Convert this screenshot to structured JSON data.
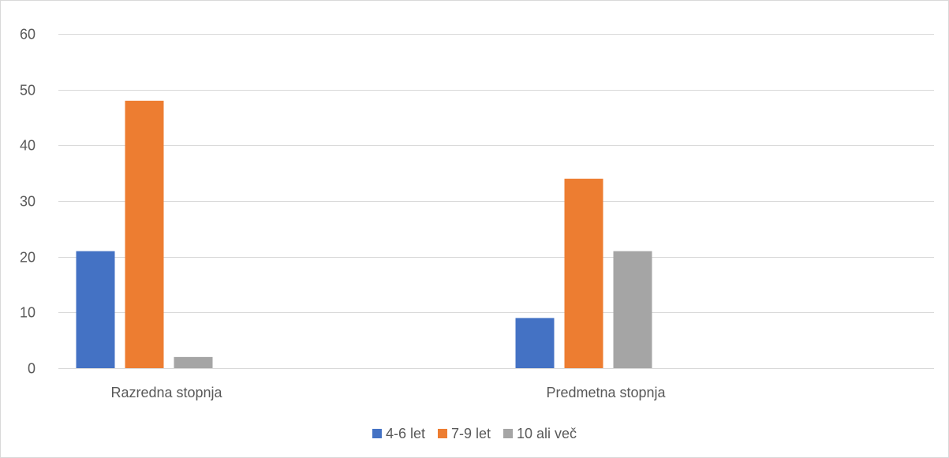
{
  "chart_data": {
    "type": "bar",
    "title": "",
    "xlabel": "",
    "ylabel": "",
    "categories": [
      "Razredna stopnja",
      "Predmetna stopnja"
    ],
    "series": [
      {
        "name": "4-6 let",
        "values": [
          21,
          9
        ],
        "color": "#4472C4"
      },
      {
        "name": "7-9 let",
        "values": [
          48,
          34
        ],
        "color": "#ED7D31"
      },
      {
        "name": "10 ali več",
        "values": [
          2,
          21
        ],
        "color": "#A5A5A5"
      }
    ],
    "ylim": [
      0,
      60
    ],
    "yticks": [
      0,
      10,
      20,
      30,
      40,
      50,
      60
    ],
    "grid": true,
    "legend_position": "bottom",
    "gridline_color": "#d9d9d9"
  }
}
